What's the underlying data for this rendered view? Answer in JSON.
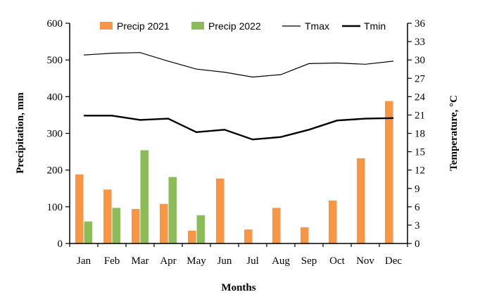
{
  "chart_data": {
    "type": "bar",
    "categories": [
      "Jan",
      "Feb",
      "Mar",
      "Apr",
      "May",
      "Jun",
      "Jul",
      "Aug",
      "Sep",
      "Oct",
      "Nov",
      "Dec"
    ],
    "series": [
      {
        "name": "Precip 2021",
        "kind": "bar",
        "axis": "left",
        "color": "#f79646",
        "values": [
          188,
          147,
          94,
          108,
          35,
          177,
          38,
          97,
          44,
          117,
          232,
          388
        ]
      },
      {
        "name": "Precip 2022",
        "kind": "bar",
        "axis": "left",
        "color": "#8dba5b",
        "values": [
          60,
          97,
          254,
          181,
          77,
          null,
          null,
          null,
          null,
          null,
          null,
          null
        ]
      },
      {
        "name": "Tmax",
        "kind": "line",
        "axis": "right",
        "color": "#000000",
        "weight": "thin",
        "values": [
          30.8,
          31.1,
          31.2,
          29.8,
          28.5,
          28.0,
          27.2,
          27.6,
          29.4,
          29.5,
          29.3,
          29.8
        ]
      },
      {
        "name": "Tmin",
        "kind": "line",
        "axis": "right",
        "color": "#000000",
        "weight": "thick",
        "values": [
          20.9,
          20.9,
          20.2,
          20.4,
          18.2,
          18.6,
          17.0,
          17.4,
          18.6,
          20.1,
          20.4,
          20.5
        ]
      }
    ],
    "xlabel": "Months",
    "ylabel": "Precipitation, mm",
    "y2label": "Temperature, °C",
    "ylim": [
      0,
      600
    ],
    "yticks": [
      "0",
      "100",
      "200",
      "300",
      "400",
      "500",
      "600"
    ],
    "y2lim": [
      0,
      36
    ],
    "y2ticks": [
      "0",
      "3",
      "6",
      "9",
      "12",
      "15",
      "18",
      "21",
      "24",
      "27",
      "30",
      "33",
      "36"
    ],
    "legend_position": "top",
    "grid": false
  }
}
